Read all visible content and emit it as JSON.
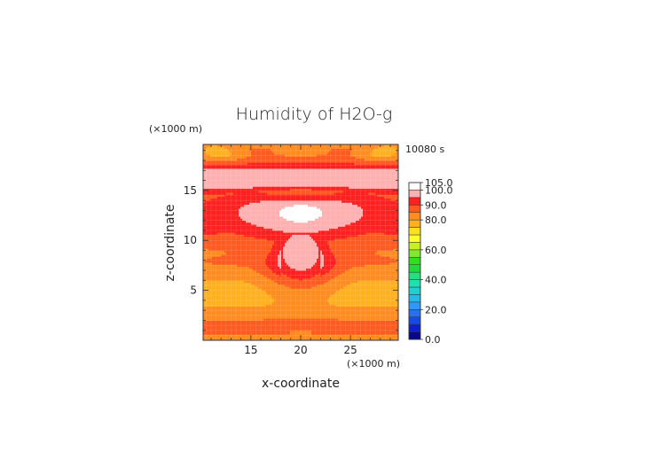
{
  "chart_data": {
    "type": "heatmap",
    "title": "Humidity of H2O-g",
    "time_label": "10080 s",
    "xlabel": "x-coordinate",
    "ylabel": "z-coordinate",
    "x_unit": "(×1000 m)",
    "y_unit": "(×1000 m)",
    "xlim": [
      10.2,
      29.8
    ],
    "ylim": [
      0,
      19.6
    ],
    "x_ticks": [
      15,
      20,
      25
    ],
    "y_ticks": [
      5,
      10,
      15
    ],
    "colorbar": {
      "levels": [
        0,
        5,
        10,
        15,
        20,
        25,
        30,
        35,
        40,
        45,
        50,
        55,
        60,
        65,
        70,
        75,
        80,
        85,
        90,
        95,
        100,
        105
      ],
      "colors": [
        "#08088c",
        "#1020c8",
        "#1848e8",
        "#2870f0",
        "#3098f8",
        "#28b8e8",
        "#20d0d0",
        "#20e0b0",
        "#20e080",
        "#20d840",
        "#30e020",
        "#80e830",
        "#c8f020",
        "#ffff30",
        "#ffe020",
        "#ffb020",
        "#ff8c20",
        "#ff5a20",
        "#ff2020",
        "#ffb0b0",
        "#ffffff"
      ],
      "labels": [
        {
          "value": 0,
          "text": "0.0"
        },
        {
          "value": 20,
          "text": "20.0"
        },
        {
          "value": 40,
          "text": "40.0"
        },
        {
          "value": 60,
          "text": "60.0"
        },
        {
          "value": 80,
          "text": "80.0"
        },
        {
          "value": 90,
          "text": "90.0"
        },
        {
          "value": 100,
          "text": "100.0"
        },
        {
          "value": 105,
          "text": "105.0"
        }
      ]
    }
  }
}
